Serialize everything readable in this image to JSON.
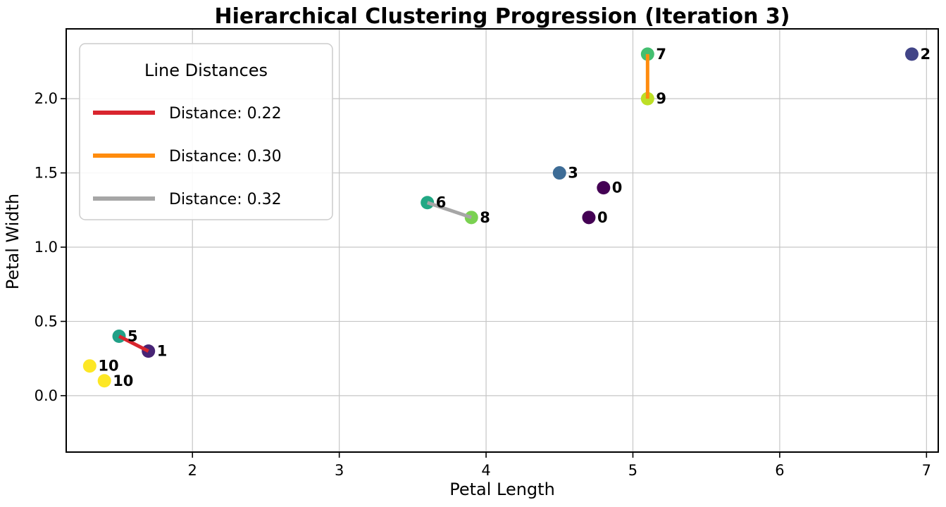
{
  "chart_data": {
    "type": "scatter",
    "title": "Hierarchical Clustering Progression (Iteration 3)",
    "xlabel": "Petal Length",
    "ylabel": "Petal Width",
    "xlim": [
      1.14,
      7.08
    ],
    "ylim": [
      -0.38,
      2.47
    ],
    "grid": true,
    "xticks": [
      2,
      3,
      4,
      5,
      6,
      7
    ],
    "xtick_labels": [
      "2",
      "3",
      "4",
      "5",
      "6",
      "7"
    ],
    "yticks": [
      0.0,
      0.5,
      1.0,
      1.5,
      2.0
    ],
    "ytick_labels": [
      "0.0",
      "0.5",
      "1.0",
      "1.5",
      "2.0"
    ],
    "points": [
      {
        "label": "0",
        "x": 4.8,
        "y": 1.4,
        "color": "#440154"
      },
      {
        "label": "0",
        "x": 4.7,
        "y": 1.2,
        "color": "#440154"
      },
      {
        "label": "1",
        "x": 1.7,
        "y": 0.3,
        "color": "#482475"
      },
      {
        "label": "2",
        "x": 6.9,
        "y": 2.3,
        "color": "#414487"
      },
      {
        "label": "3",
        "x": 4.5,
        "y": 1.5,
        "color": "#3d6c96"
      },
      {
        "label": "5",
        "x": 1.5,
        "y": 0.4,
        "color": "#21a087"
      },
      {
        "label": "6",
        "x": 3.6,
        "y": 1.3,
        "color": "#22a884"
      },
      {
        "label": "7",
        "x": 5.1,
        "y": 2.3,
        "color": "#44bf70"
      },
      {
        "label": "8",
        "x": 3.9,
        "y": 1.2,
        "color": "#7ad151"
      },
      {
        "label": "9",
        "x": 5.1,
        "y": 2.0,
        "color": "#bddf26"
      },
      {
        "label": "10",
        "x": 1.3,
        "y": 0.2,
        "color": "#fde725"
      },
      {
        "label": "10",
        "x": 1.4,
        "y": 0.1,
        "color": "#fde725"
      }
    ],
    "lines": [
      {
        "distance": 0.22,
        "color": "#d9252e",
        "x1": 1.5,
        "y1": 0.4,
        "x2": 1.7,
        "y2": 0.3
      },
      {
        "distance": 0.3,
        "color": "#ff8c0e",
        "x1": 5.1,
        "y1": 2.3,
        "x2": 5.1,
        "y2": 2.0
      },
      {
        "distance": 0.32,
        "color": "#a6a6a6",
        "x1": 3.6,
        "y1": 1.3,
        "x2": 3.9,
        "y2": 1.2
      }
    ],
    "legend": {
      "title": "Line Distances",
      "position": "upper left",
      "entries": [
        {
          "label": "Distance: 0.22",
          "color": "#d9252e"
        },
        {
          "label": "Distance: 0.30",
          "color": "#ff8c0e"
        },
        {
          "label": "Distance: 0.32",
          "color": "#a6a6a6"
        }
      ]
    }
  },
  "colors": {
    "background": "#ffffff",
    "grid": "#c6c6c6",
    "spine": "#000000",
    "text": "#000000",
    "legend_border": "#cccccc"
  }
}
